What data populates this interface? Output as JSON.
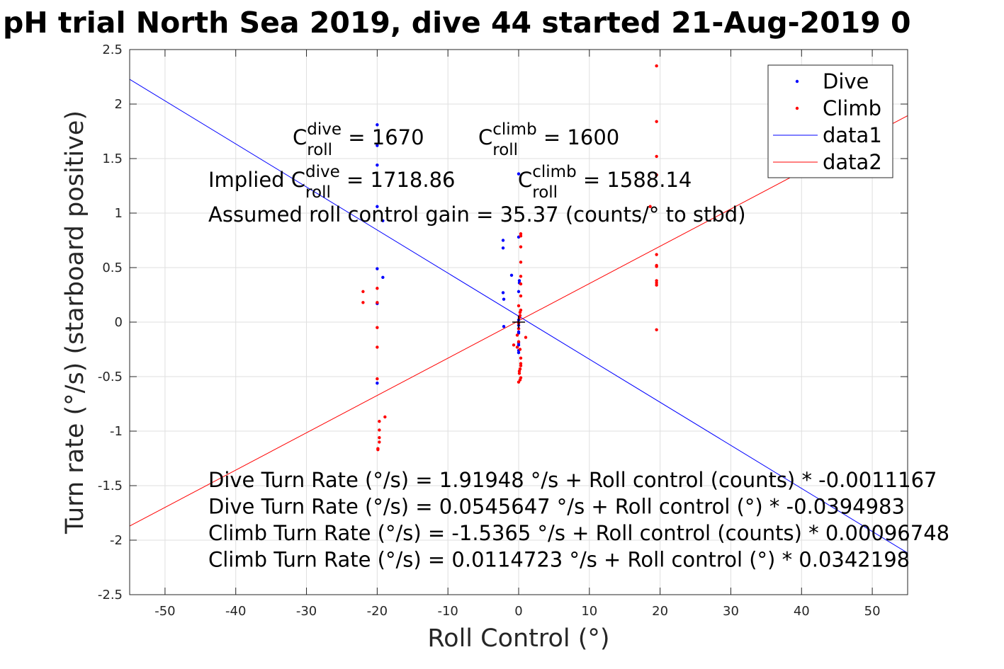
{
  "chart_data": {
    "type": "scatter",
    "title": "pH trial North Sea 2019, dive 44 started 21-Aug-2019 0",
    "xlabel": "Roll Control (°)",
    "ylabel": "Turn rate (°/s) (starboard positive)",
    "xlim": [
      -55,
      55
    ],
    "ylim": [
      -2.5,
      2.5
    ],
    "xticks": [
      -50,
      -40,
      -30,
      -20,
      -10,
      0,
      10,
      20,
      30,
      40,
      50
    ],
    "xtick_labels": [
      "-50",
      "-40",
      "-30",
      "-20",
      "-10",
      "0",
      "10",
      "20",
      "30",
      "40",
      "50"
    ],
    "yticks": [
      -2.5,
      -2,
      -1.5,
      -1,
      -0.5,
      0,
      0.5,
      1,
      1.5,
      2,
      2.5
    ],
    "ytick_labels": [
      "-2.5",
      "-2",
      "-1.5",
      "-1",
      "-0.5",
      "0",
      "0.5",
      "1",
      "1.5",
      "2",
      "2.5"
    ],
    "grid": true,
    "legend_position": "top-right",
    "colors": {
      "dive": "#0000ff",
      "climb": "#ff0000",
      "marker": "#000000"
    },
    "series": [
      {
        "name": "Dive",
        "kind": "points",
        "color": "#0000ff",
        "points": [
          [
            -20,
            1.81
          ],
          [
            -20,
            1.62
          ],
          [
            -20,
            1.44
          ],
          [
            -20,
            1.06
          ],
          [
            -19.2,
            0.93
          ],
          [
            -20,
            0.49
          ],
          [
            -19.2,
            0.41
          ],
          [
            -20,
            0.17
          ],
          [
            -20,
            -0.56
          ],
          [
            -2.2,
            0.75
          ],
          [
            -2.2,
            0.68
          ],
          [
            -2.2,
            0.27
          ],
          [
            -2.1,
            0.21
          ],
          [
            -2.1,
            -0.04
          ],
          [
            -1,
            0.43
          ],
          [
            0,
            0.78
          ],
          [
            0.1,
            0.38
          ],
          [
            0.1,
            0.36
          ],
          [
            0,
            0.28
          ],
          [
            0,
            0.02
          ],
          [
            0,
            -0.03
          ],
          [
            0,
            -0.06
          ],
          [
            0,
            -0.09
          ],
          [
            0,
            -0.1
          ],
          [
            0,
            -0.19
          ],
          [
            0,
            -0.21
          ],
          [
            0,
            -0.26
          ],
          [
            0,
            -0.28
          ],
          [
            0.1,
            0.05
          ],
          [
            0,
            1.36
          ]
        ]
      },
      {
        "name": "Climb",
        "kind": "points",
        "color": "#ff0000",
        "points": [
          [
            19.5,
            2.35
          ],
          [
            19.5,
            1.84
          ],
          [
            19.5,
            1.52
          ],
          [
            19.5,
            1.35
          ],
          [
            18.6,
            1.06
          ],
          [
            19.5,
            0.62
          ],
          [
            19.5,
            0.52
          ],
          [
            19.5,
            0.51
          ],
          [
            19.5,
            0.38
          ],
          [
            19.5,
            0.36
          ],
          [
            19.5,
            0.34
          ],
          [
            19.5,
            -0.07
          ],
          [
            -22,
            0.28
          ],
          [
            -22,
            0.18
          ],
          [
            -20,
            0.31
          ],
          [
            -20,
            0.18
          ],
          [
            -20,
            -0.05
          ],
          [
            -20,
            -0.23
          ],
          [
            -20,
            -0.52
          ],
          [
            -18.9,
            -0.87
          ],
          [
            -19.7,
            -0.91
          ],
          [
            -19.7,
            -0.99
          ],
          [
            -19.7,
            -1.06
          ],
          [
            -19.7,
            -1.1
          ],
          [
            -19.9,
            -1.16
          ],
          [
            -19.9,
            -1.17
          ],
          [
            0.3,
            0.81
          ],
          [
            0.3,
            0.79
          ],
          [
            0.3,
            0.69
          ],
          [
            0.3,
            0.55
          ],
          [
            0.3,
            0.42
          ],
          [
            0.3,
            0.35
          ],
          [
            0.3,
            0.24
          ],
          [
            0,
            0.15
          ],
          [
            0.3,
            0.11
          ],
          [
            0.2,
            0.09
          ],
          [
            0.2,
            0.06
          ],
          [
            0.1,
            0.04
          ],
          [
            0,
            -0.01
          ],
          [
            0,
            -0.06
          ],
          [
            -0.2,
            -0.12
          ],
          [
            1,
            -0.14
          ],
          [
            0,
            -0.18
          ],
          [
            -0.7,
            -0.21
          ],
          [
            -0.2,
            -0.23
          ],
          [
            0.2,
            -0.25
          ],
          [
            0.3,
            -0.33
          ],
          [
            0.3,
            -0.38
          ],
          [
            0.3,
            -0.4
          ],
          [
            0.2,
            -0.43
          ],
          [
            0.1,
            -0.45
          ],
          [
            0.1,
            -0.47
          ],
          [
            0.3,
            -0.51
          ],
          [
            0.2,
            -0.53
          ],
          [
            0,
            -0.55
          ]
        ]
      },
      {
        "name": "data1",
        "kind": "line",
        "color": "#0000ff",
        "intercept": 0.0545647,
        "slope": -0.0394983
      },
      {
        "name": "data2",
        "kind": "line",
        "color": "#ff0000",
        "intercept": 0.0114723,
        "slope": 0.0342198
      }
    ],
    "center_marker": {
      "symbol": "+",
      "x": 0,
      "y": 0
    },
    "annotations": {
      "c_dive": {
        "base": "C",
        "sup": "dive",
        "sub": "roll",
        "value": " = 1670"
      },
      "c_climb": {
        "base": "C",
        "sup": "climb",
        "sub": "roll",
        "value": " = 1600"
      },
      "implied_dive": {
        "prefix": "Implied ",
        "base": "C",
        "sup": "dive",
        "sub": "roll",
        "value": " = 1718.86"
      },
      "implied_climb": {
        "base": "C",
        "sup": "climb",
        "sub": "roll",
        "value": " = 1588.14"
      },
      "gain": "Assumed roll control gain = 35.37 (counts/° to stbd)",
      "fits": [
        "Dive Turn Rate (°/s) = 1.91948 °/s + Roll control (counts) * -0.0011167",
        "Dive Turn Rate (°/s) = 0.0545647 °/s + Roll control (°) * -0.0394983",
        "Climb Turn Rate (°/s) = -1.5365 °/s + Roll control (counts) * 0.00096748",
        "Climb Turn Rate (°/s) = 0.0114723 °/s + Roll control (°) * 0.0342198"
      ]
    }
  }
}
